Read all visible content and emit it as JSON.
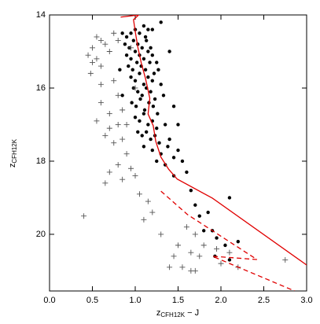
{
  "chart_data": {
    "type": "scatter",
    "x_label": {
      "text": "z",
      "sub": "CFH12K",
      "rest": " − J"
    },
    "y_label": {
      "text": "z",
      "sub": "CFH12K"
    },
    "xlim": [
      0,
      3
    ],
    "ylim": [
      21.55,
      14
    ],
    "xticks": [
      {
        "value": 0,
        "label": "0.0"
      },
      0.5,
      {
        "value": 1,
        "label": "1.0"
      },
      1.5,
      {
        "value": 2,
        "label": "2.0"
      },
      2.5,
      {
        "value": 3,
        "label": "3.0"
      }
    ],
    "yticks": [
      14,
      16,
      18,
      20
    ],
    "series": [
      {
        "marker": "dot",
        "color": "#000000",
        "x": [
          0.85,
          0.9,
          0.95,
          1.0,
          1.05,
          1.1,
          1.12,
          1.15,
          0.88,
          0.93,
          0.98,
          1.03,
          1.08,
          1.13,
          1.18,
          0.9,
          0.95,
          1.0,
          1.05,
          1.1,
          1.15,
          1.2,
          1.25,
          0.92,
          0.97,
          1.02,
          1.07,
          1.12,
          1.17,
          1.22,
          1.27,
          0.95,
          1.0,
          1.05,
          1.1,
          1.15,
          1.2,
          1.3,
          0.98,
          1.03,
          1.08,
          1.13,
          1.18,
          1.23,
          1.33,
          0.96,
          1.01,
          1.06,
          1.11,
          1.16,
          1.21,
          1.26,
          1.0,
          1.05,
          1.1,
          1.15,
          1.2,
          1.25,
          1.35,
          1.03,
          1.08,
          1.13,
          1.18,
          1.23,
          1.28,
          1.38,
          1.1,
          1.2,
          1.3,
          1.4,
          1.45,
          1.25,
          1.35,
          1.55,
          1.5,
          1.6,
          1.45,
          1.65,
          1.7,
          1.75,
          1.85,
          1.9,
          1.95,
          2.05,
          1.8,
          2.1,
          2.2,
          1.93,
          2.1,
          1.45,
          1.5,
          0.82,
          0.85,
          1.4,
          1.3,
          1.2
        ],
        "y": [
          14.5,
          14.6,
          14.5,
          14.4,
          14.5,
          14.3,
          14.6,
          14.4,
          14.8,
          14.9,
          14.7,
          14.8,
          14.9,
          14.7,
          14.9,
          15.1,
          15.2,
          15.0,
          15.1,
          15.2,
          15.0,
          15.1,
          15.3,
          15.4,
          15.5,
          15.3,
          15.4,
          15.5,
          15.3,
          15.6,
          15.5,
          15.7,
          15.8,
          15.6,
          15.9,
          15.7,
          15.8,
          15.9,
          16.0,
          16.1,
          16.2,
          16.0,
          16.1,
          16.3,
          16.2,
          16.4,
          16.5,
          16.3,
          16.6,
          16.4,
          16.5,
          16.7,
          16.8,
          16.9,
          16.7,
          17.0,
          16.9,
          17.1,
          17.0,
          17.2,
          17.3,
          17.2,
          17.4,
          17.3,
          17.5,
          17.6,
          17.6,
          17.7,
          17.8,
          17.4,
          17.9,
          18.0,
          18.1,
          18.0,
          17.7,
          18.3,
          18.4,
          18.8,
          19.2,
          19.5,
          19.4,
          19.9,
          20.1,
          20.3,
          19.9,
          20.7,
          20.2,
          20.6,
          19.0,
          16.5,
          17.0,
          15.5,
          16.2,
          15.0,
          14.2,
          14.4
        ]
      },
      {
        "marker": "plus",
        "color": "#555555",
        "x": [
          0.55,
          0.6,
          0.5,
          0.65,
          0.45,
          0.55,
          0.6,
          0.5,
          0.7,
          0.75,
          0.8,
          0.48,
          0.6,
          0.75,
          0.8,
          0.6,
          0.7,
          0.85,
          0.55,
          0.7,
          0.8,
          0.65,
          0.75,
          0.85,
          0.9,
          0.8,
          0.95,
          0.7,
          0.85,
          1.0,
          0.65,
          1.05,
          1.15,
          0.4,
          1.1,
          1.2,
          1.3,
          1.5,
          1.6,
          1.7,
          1.8,
          1.45,
          1.65,
          1.75,
          1.95,
          2.1,
          1.4,
          1.55,
          2.2,
          1.65,
          1.7,
          2.75,
          2.0,
          0.95,
          1.0,
          0.9
        ],
        "y": [
          14.6,
          14.7,
          14.9,
          14.8,
          15.1,
          15.2,
          15.4,
          15.3,
          15.0,
          14.5,
          14.7,
          15.6,
          15.9,
          15.8,
          16.2,
          16.4,
          16.7,
          16.6,
          16.9,
          17.1,
          17.0,
          17.3,
          17.5,
          17.4,
          17.8,
          18.1,
          18.2,
          18.3,
          18.5,
          18.4,
          18.6,
          18.9,
          19.1,
          19.5,
          19.6,
          19.4,
          20.0,
          20.3,
          19.8,
          20.0,
          20.3,
          20.6,
          20.5,
          20.6,
          20.4,
          20.5,
          20.9,
          20.9,
          20.9,
          21.0,
          21.0,
          20.7,
          20.8,
          14.9,
          16.0,
          17.0
        ]
      }
    ],
    "lines": [
      {
        "color": "#e00000",
        "dash": false,
        "x": [
          0.83,
          1.04,
          0.98,
          1.0,
          1.03,
          1.07,
          1.12,
          1.17,
          1.15,
          1.21,
          1.24,
          1.3,
          1.39,
          1.49,
          1.9,
          3.0
        ],
        "y": [
          14.06,
          14.0,
          14.13,
          14.45,
          14.88,
          15.31,
          15.74,
          16.28,
          16.71,
          17.03,
          17.46,
          17.89,
          18.22,
          18.49,
          19.01,
          20.84
        ]
      },
      {
        "color": "#e00000",
        "dash": true,
        "x": [
          1.3,
          1.61,
          2.42,
          1.9,
          2.86
        ],
        "y": [
          18.82,
          19.46,
          20.69,
          20.6,
          21.55
        ]
      }
    ]
  }
}
